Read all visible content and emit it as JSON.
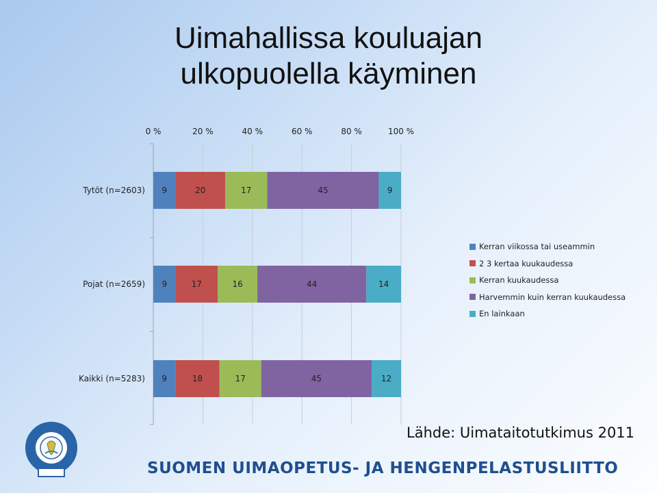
{
  "title_line1": "Uimahallissa kouluajan",
  "title_line2": "ulkopuolella käyminen",
  "source": "Lähde: Uimataitotutkimus 2011",
  "footer": "SUOMEN UIMAOPETUS- JA HENGENPELASTUSLIITTO",
  "logo": {
    "letters_top": "SUH",
    "letters_right": "FSL",
    "year": "1956",
    "colors": {
      "blue": "#2a64a8",
      "gold": "#e2b43a",
      "teal": "#3a8f78"
    }
  },
  "colors": {
    "series": [
      "#4f81bd",
      "#c0504d",
      "#9bbb59",
      "#8064a2",
      "#4bacc6"
    ],
    "footer_text": "#1f4f8f"
  },
  "chart_data": {
    "type": "bar",
    "orientation": "horizontal",
    "stacked": "percent",
    "categories": [
      "Tytöt (n=2603)",
      "Pojat (n=2659)",
      "Kaikki (n=5283)"
    ],
    "series": [
      {
        "name": "Kerran viikossa tai useammin",
        "values": [
          9,
          9,
          9
        ]
      },
      {
        "name": "2 3 kertaa kuukaudessa",
        "values": [
          20,
          17,
          18
        ]
      },
      {
        "name": "Kerran kuukaudessa",
        "values": [
          17,
          16,
          17
        ]
      },
      {
        "name": "Harvemmin kuin kerran kuukaudessa",
        "values": [
          45,
          44,
          45
        ]
      },
      {
        "name": "En lainkaan",
        "values": [
          9,
          14,
          12
        ]
      }
    ],
    "xticks": [
      "0 %",
      "20 %",
      "40 %",
      "60 %",
      "80 %",
      "100 %"
    ],
    "xlim": [
      0,
      100
    ],
    "axis_position": "top",
    "grid": true,
    "legend_position": "right"
  }
}
